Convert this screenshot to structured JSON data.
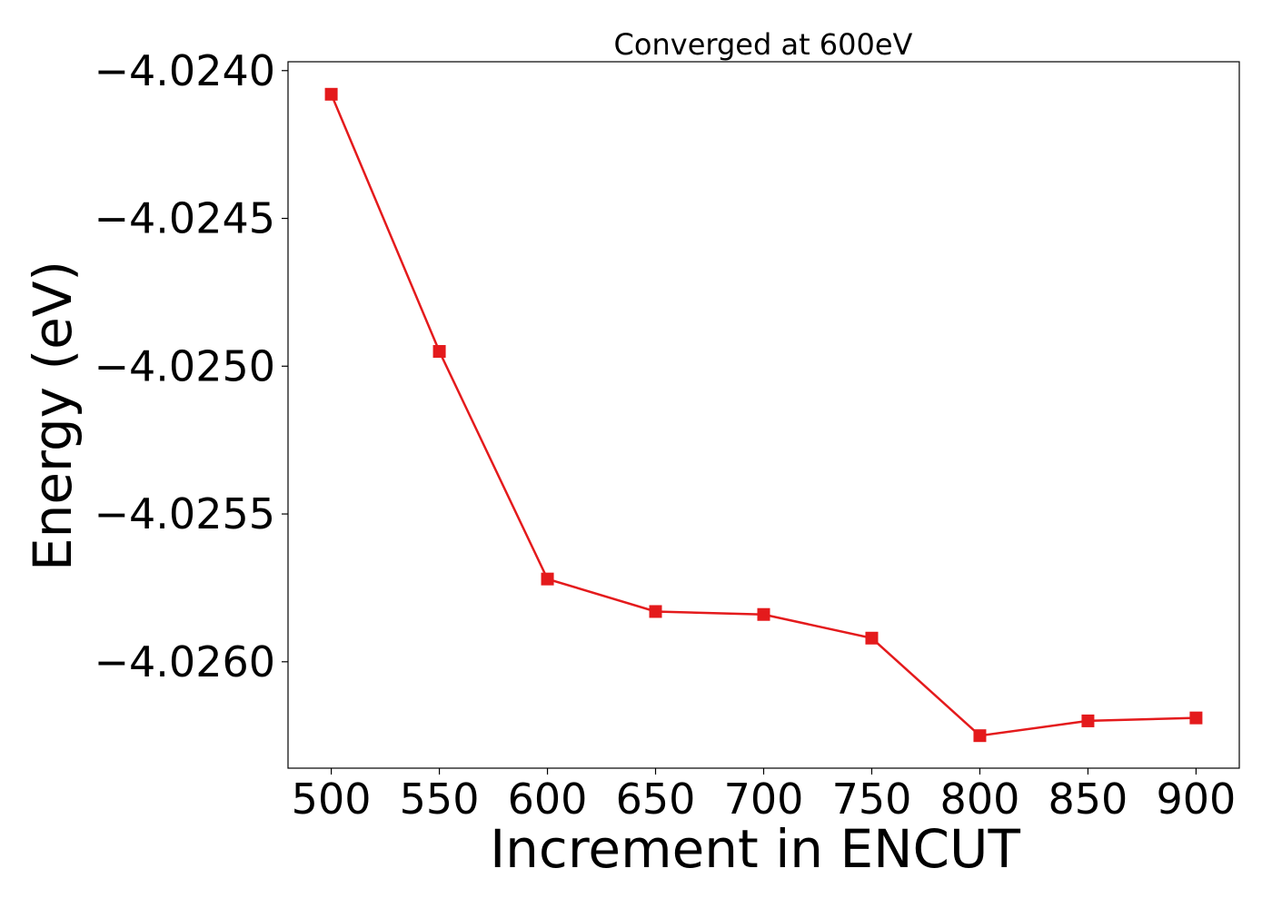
{
  "chart_data": {
    "type": "line",
    "title": "Converged at 600eV",
    "xlabel": "Increment in ENCUT",
    "ylabel": "Energy (eV)",
    "x": [
      500,
      550,
      600,
      650,
      700,
      750,
      800,
      850,
      900
    ],
    "series": [
      {
        "values": [
          -4.02408,
          -4.02495,
          -4.02572,
          -4.02583,
          -4.02584,
          -4.02592,
          -4.02625,
          -4.0262,
          -4.02619
        ],
        "color": "#e41a1c",
        "marker": "square"
      }
    ],
    "xticks": [
      500,
      550,
      600,
      650,
      700,
      750,
      800,
      850,
      900
    ],
    "xtick_labels": [
      "500",
      "550",
      "600",
      "650",
      "700",
      "750",
      "800",
      "850",
      "900"
    ],
    "yticks": [
      -4.024,
      -4.0245,
      -4.025,
      -4.0255,
      -4.026
    ],
    "ytick_labels": [
      "−4.0240",
      "−4.0245",
      "−4.0250",
      "−4.0255",
      "−4.0260"
    ],
    "xlim": [
      480,
      920
    ],
    "ylim": [
      -4.02636,
      -4.02397
    ],
    "grid": false,
    "legend": "none"
  }
}
